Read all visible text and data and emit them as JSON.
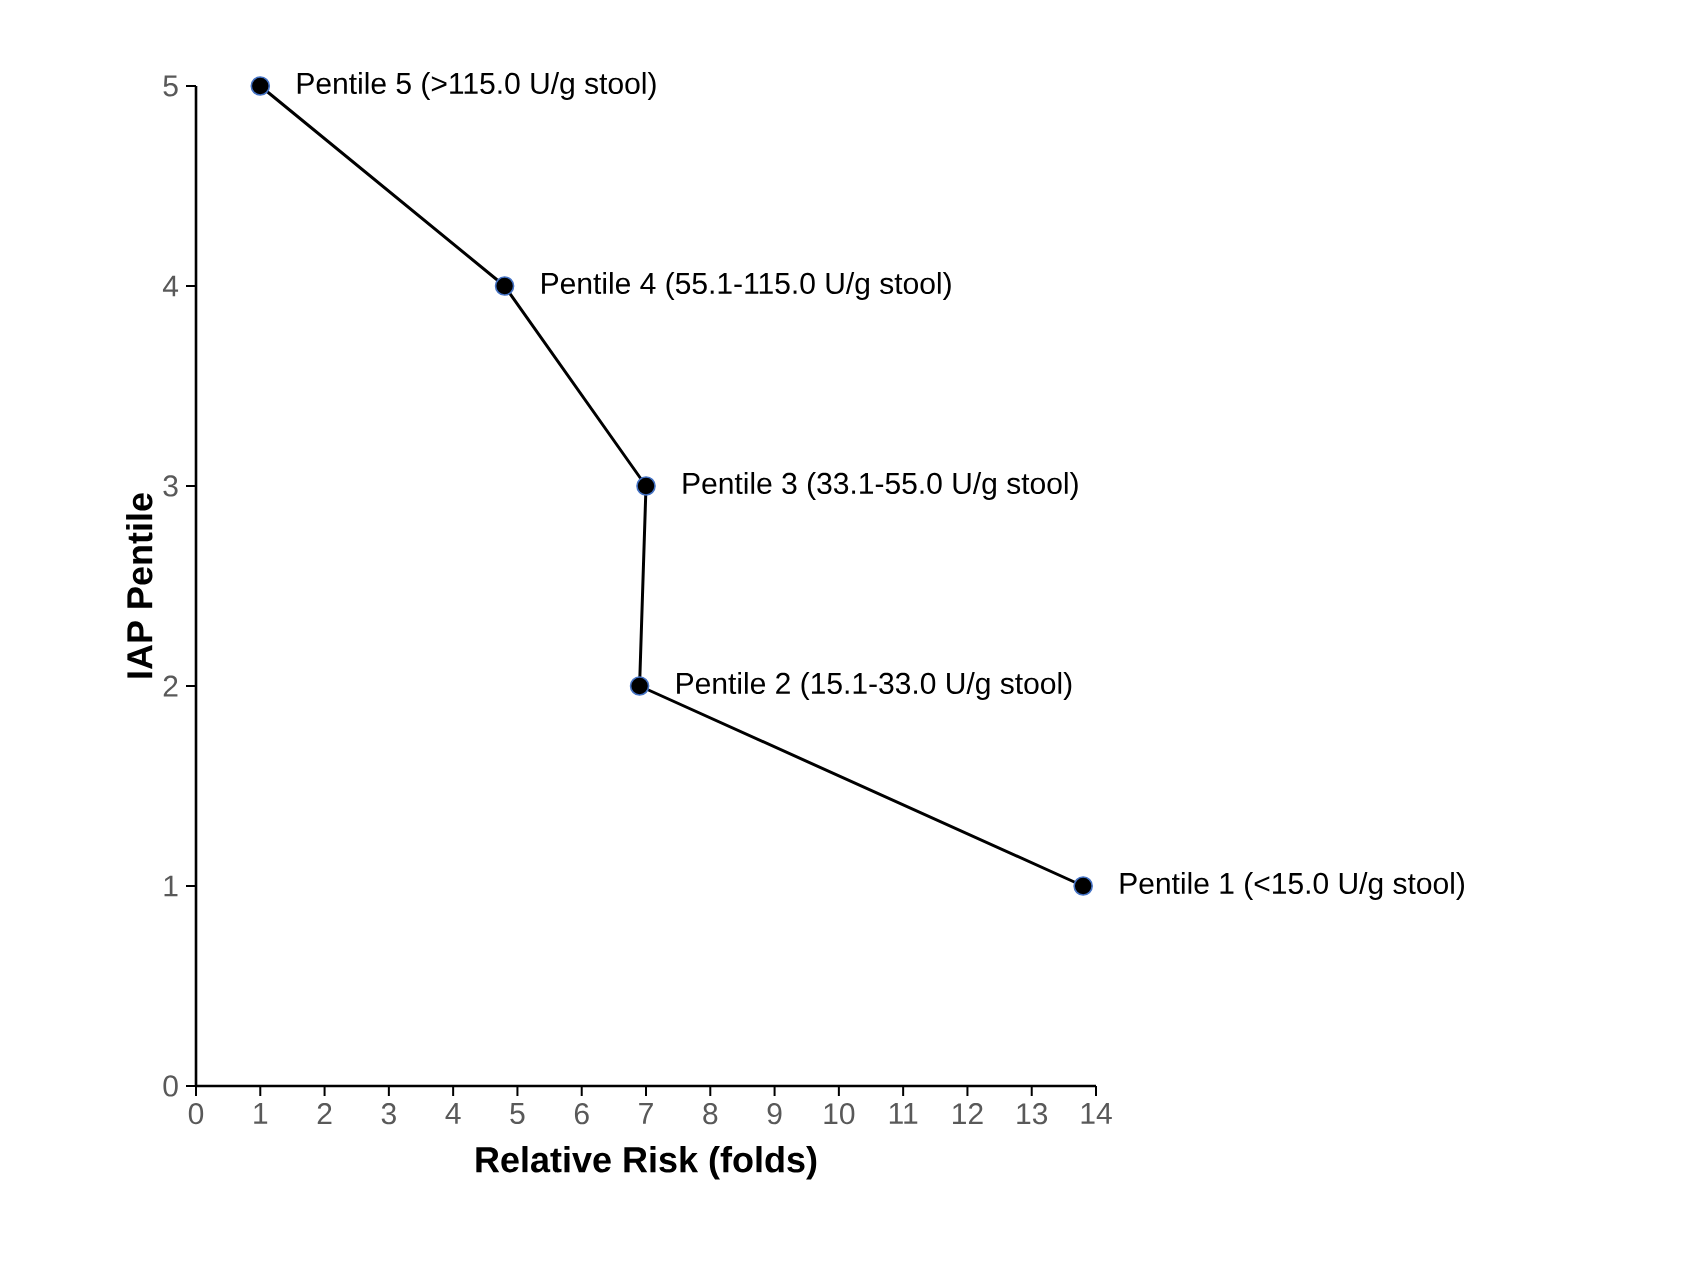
{
  "chart_data": {
    "type": "line",
    "xlabel": "Relative Risk (folds)",
    "ylabel": "IAP Pentile",
    "x": [
      1.0,
      4.8,
      7.0,
      6.9,
      13.8
    ],
    "series": [
      {
        "color": "#000000",
        "values": [
          5,
          4,
          3,
          2,
          1
        ]
      }
    ],
    "xlim": [
      0,
      14
    ],
    "ylim": [
      0,
      5
    ],
    "xticks": [
      0,
      1,
      2,
      3,
      4,
      5,
      6,
      7,
      8,
      9,
      10,
      11,
      12,
      13,
      14
    ],
    "yticks": [
      0,
      1,
      2,
      3,
      4,
      5
    ],
    "marker": "circle",
    "grid": false,
    "annotations": [
      {
        "text": "Pentile 5 (>115.0 U/g stool)",
        "x": 1.0,
        "y": 5
      },
      {
        "text": "Pentile 4 (55.1-115.0 U/g stool)",
        "x": 4.8,
        "y": 4
      },
      {
        "text": "Pentile 3 (33.1-55.0 U/g stool)",
        "x": 7.0,
        "y": 3
      },
      {
        "text": "Pentile 2 (15.1-33.0 U/g stool)",
        "x": 6.9,
        "y": 2
      },
      {
        "text": "Pentile 1 (<15.0 U/g stool)",
        "x": 13.8,
        "y": 1
      }
    ]
  }
}
